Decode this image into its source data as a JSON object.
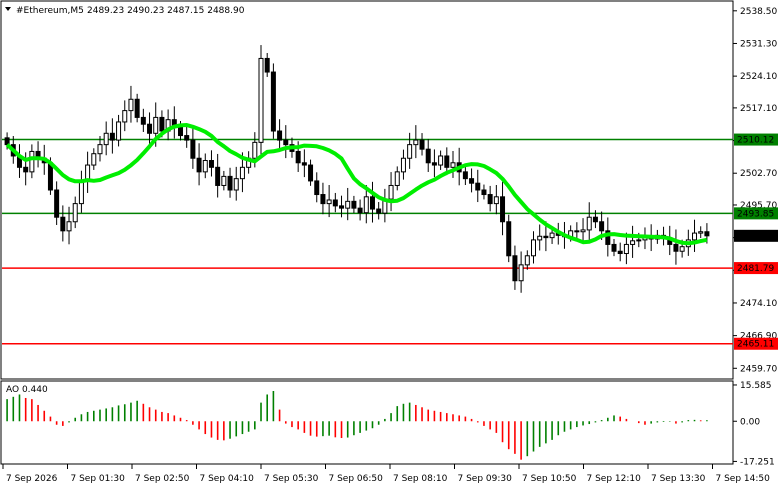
{
  "header": {
    "symbol": "#Ethereum,M5",
    "ohlc": "2489.23 2490.23 2487.15 2488.90"
  },
  "colors": {
    "bull": "#000000",
    "bear": "#000000",
    "ma": "#00ee00",
    "support": "#ff0000",
    "resistance": "#008000",
    "ao_up": "#008000",
    "ao_down": "#ff0000",
    "price_tag_bg": "#000000"
  },
  "chart_data": [
    {
      "type": "candlestick",
      "title": "#Ethereum,M5",
      "ylim": [
        2458.0,
        2540.0
      ],
      "ytick_labels": [
        "2538.50",
        "2531.30",
        "2524.10",
        "2517.10",
        "2509.90",
        "2502.70",
        "2495.70",
        "2488.50",
        "2481.30",
        "2474.10",
        "2466.90",
        "2459.70"
      ],
      "xtick_labels": [
        "7 Sep 2026",
        "7 Sep 01:30",
        "7 Sep 02:50",
        "7 Sep 04:10",
        "7 Sep 05:30",
        "7 Sep 06:50",
        "7 Sep 08:10",
        "7 Sep 09:30",
        "7 Sep 10:50",
        "7 Sep 12:10",
        "7 Sep 13:30",
        "7 Sep 14:50"
      ],
      "current_price": 2488.9,
      "horizontal_levels": [
        {
          "value": 2510.12,
          "label": "2510.12",
          "kind": "resistance"
        },
        {
          "value": 2493.85,
          "label": "2493.85",
          "kind": "resistance"
        },
        {
          "value": 2481.79,
          "label": "2481.79",
          "kind": "support"
        },
        {
          "value": 2465.11,
          "label": "2465.11",
          "kind": "support"
        }
      ],
      "close": [
        2509.0,
        2506.5,
        2504.0,
        2503.0,
        2507.5,
        2506.0,
        2505.0,
        2499.0,
        2493.0,
        2490.0,
        2492.0,
        2496.0,
        2501.0,
        2504.5,
        2507.0,
        2509.0,
        2511.5,
        2510.0,
        2514.0,
        2516.5,
        2519.0,
        2515.0,
        2513.5,
        2511.5,
        2515.0,
        2512.0,
        2514.5,
        2513.0,
        2511.0,
        2510.0,
        2506.0,
        2503.0,
        2505.5,
        2504.0,
        2500.0,
        2502.0,
        2499.0,
        2501.5,
        2504.0,
        2506.0,
        2509.5,
        2528.0,
        2525.0,
        2512.0,
        2510.0,
        2509.0,
        2507.5,
        2505.0,
        2504.5,
        2501.0,
        2498.0,
        2496.0,
        2496.8,
        2495.5,
        2495.0,
        2496.5,
        2495.0,
        2494.0,
        2497.5,
        2494.8,
        2493.9,
        2497.0,
        2500.0,
        2503.0,
        2506.0,
        2509.0,
        2510.0,
        2508.0,
        2505.0,
        2504.5,
        2506.5,
        2504.0,
        2505.0,
        2503.0,
        2501.5,
        2500.5,
        2499.0,
        2498.0,
        2496.0,
        2497.5,
        2492.0,
        2484.5,
        2479.0,
        2482.5,
        2484.5,
        2488.0,
        2488.8,
        2488.5,
        2489.5,
        2489.0,
        2488.7,
        2490.0,
        2489.8,
        2490.2,
        2493.0,
        2492.0,
        2490.0,
        2487.0,
        2485.5,
        2485.0,
        2487.0,
        2487.8,
        2488.0,
        2488.5,
        2488.2,
        2489.0,
        2488.5,
        2487.0,
        2485.5,
        2486.5,
        2488.0,
        2489.5,
        2489.8,
        2488.9
      ],
      "ao": {
        "ylim": [
          -17.5,
          16.0
        ],
        "ytick_labels": [
          "15.585",
          "0.00",
          "-17.251"
        ],
        "last_label": "AO 0.440",
        "values": [
          9.5,
          10.5,
          11.5,
          10.0,
          9.5,
          7.0,
          4.5,
          2.0,
          -1.5,
          -2.0,
          -0.5,
          1.5,
          3.0,
          4.0,
          4.5,
          5.0,
          5.5,
          6.0,
          6.8,
          7.3,
          8.0,
          8.8,
          7.5,
          6.0,
          5.0,
          4.0,
          3.5,
          2.5,
          1.5,
          0.5,
          -1.5,
          -3.5,
          -5.5,
          -7.0,
          -8.0,
          -8.2,
          -7.5,
          -6.5,
          -5.5,
          -4.5,
          -3.5,
          8.0,
          11.5,
          13.0,
          5.0,
          -1.0,
          -2.5,
          -3.5,
          -5.0,
          -6.2,
          -6.6,
          -6.4,
          -6.2,
          -6.9,
          -7.2,
          -7.0,
          -6.0,
          -5.0,
          -4.0,
          -3.0,
          -1.5,
          1.0,
          3.5,
          6.5,
          7.5,
          8.0,
          7.0,
          6.0,
          5.0,
          4.5,
          4.0,
          3.5,
          3.0,
          2.5,
          2.0,
          1.0,
          -0.5,
          -2.0,
          -3.5,
          -5.0,
          -9.0,
          -12.0,
          -14.0,
          -16.5,
          -15.0,
          -13.0,
          -11.0,
          -9.5,
          -8.0,
          -6.0,
          -4.5,
          -3.5,
          -2.5,
          -1.8,
          -1.2,
          -0.5,
          0.5,
          1.5,
          2.5,
          2.0,
          1.0,
          0.0,
          -0.8,
          -1.5,
          -1.0,
          -0.5,
          -0.3,
          -0.2,
          -1.0,
          -0.5,
          0.5,
          0.6,
          0.4,
          0.44
        ]
      }
    }
  ]
}
